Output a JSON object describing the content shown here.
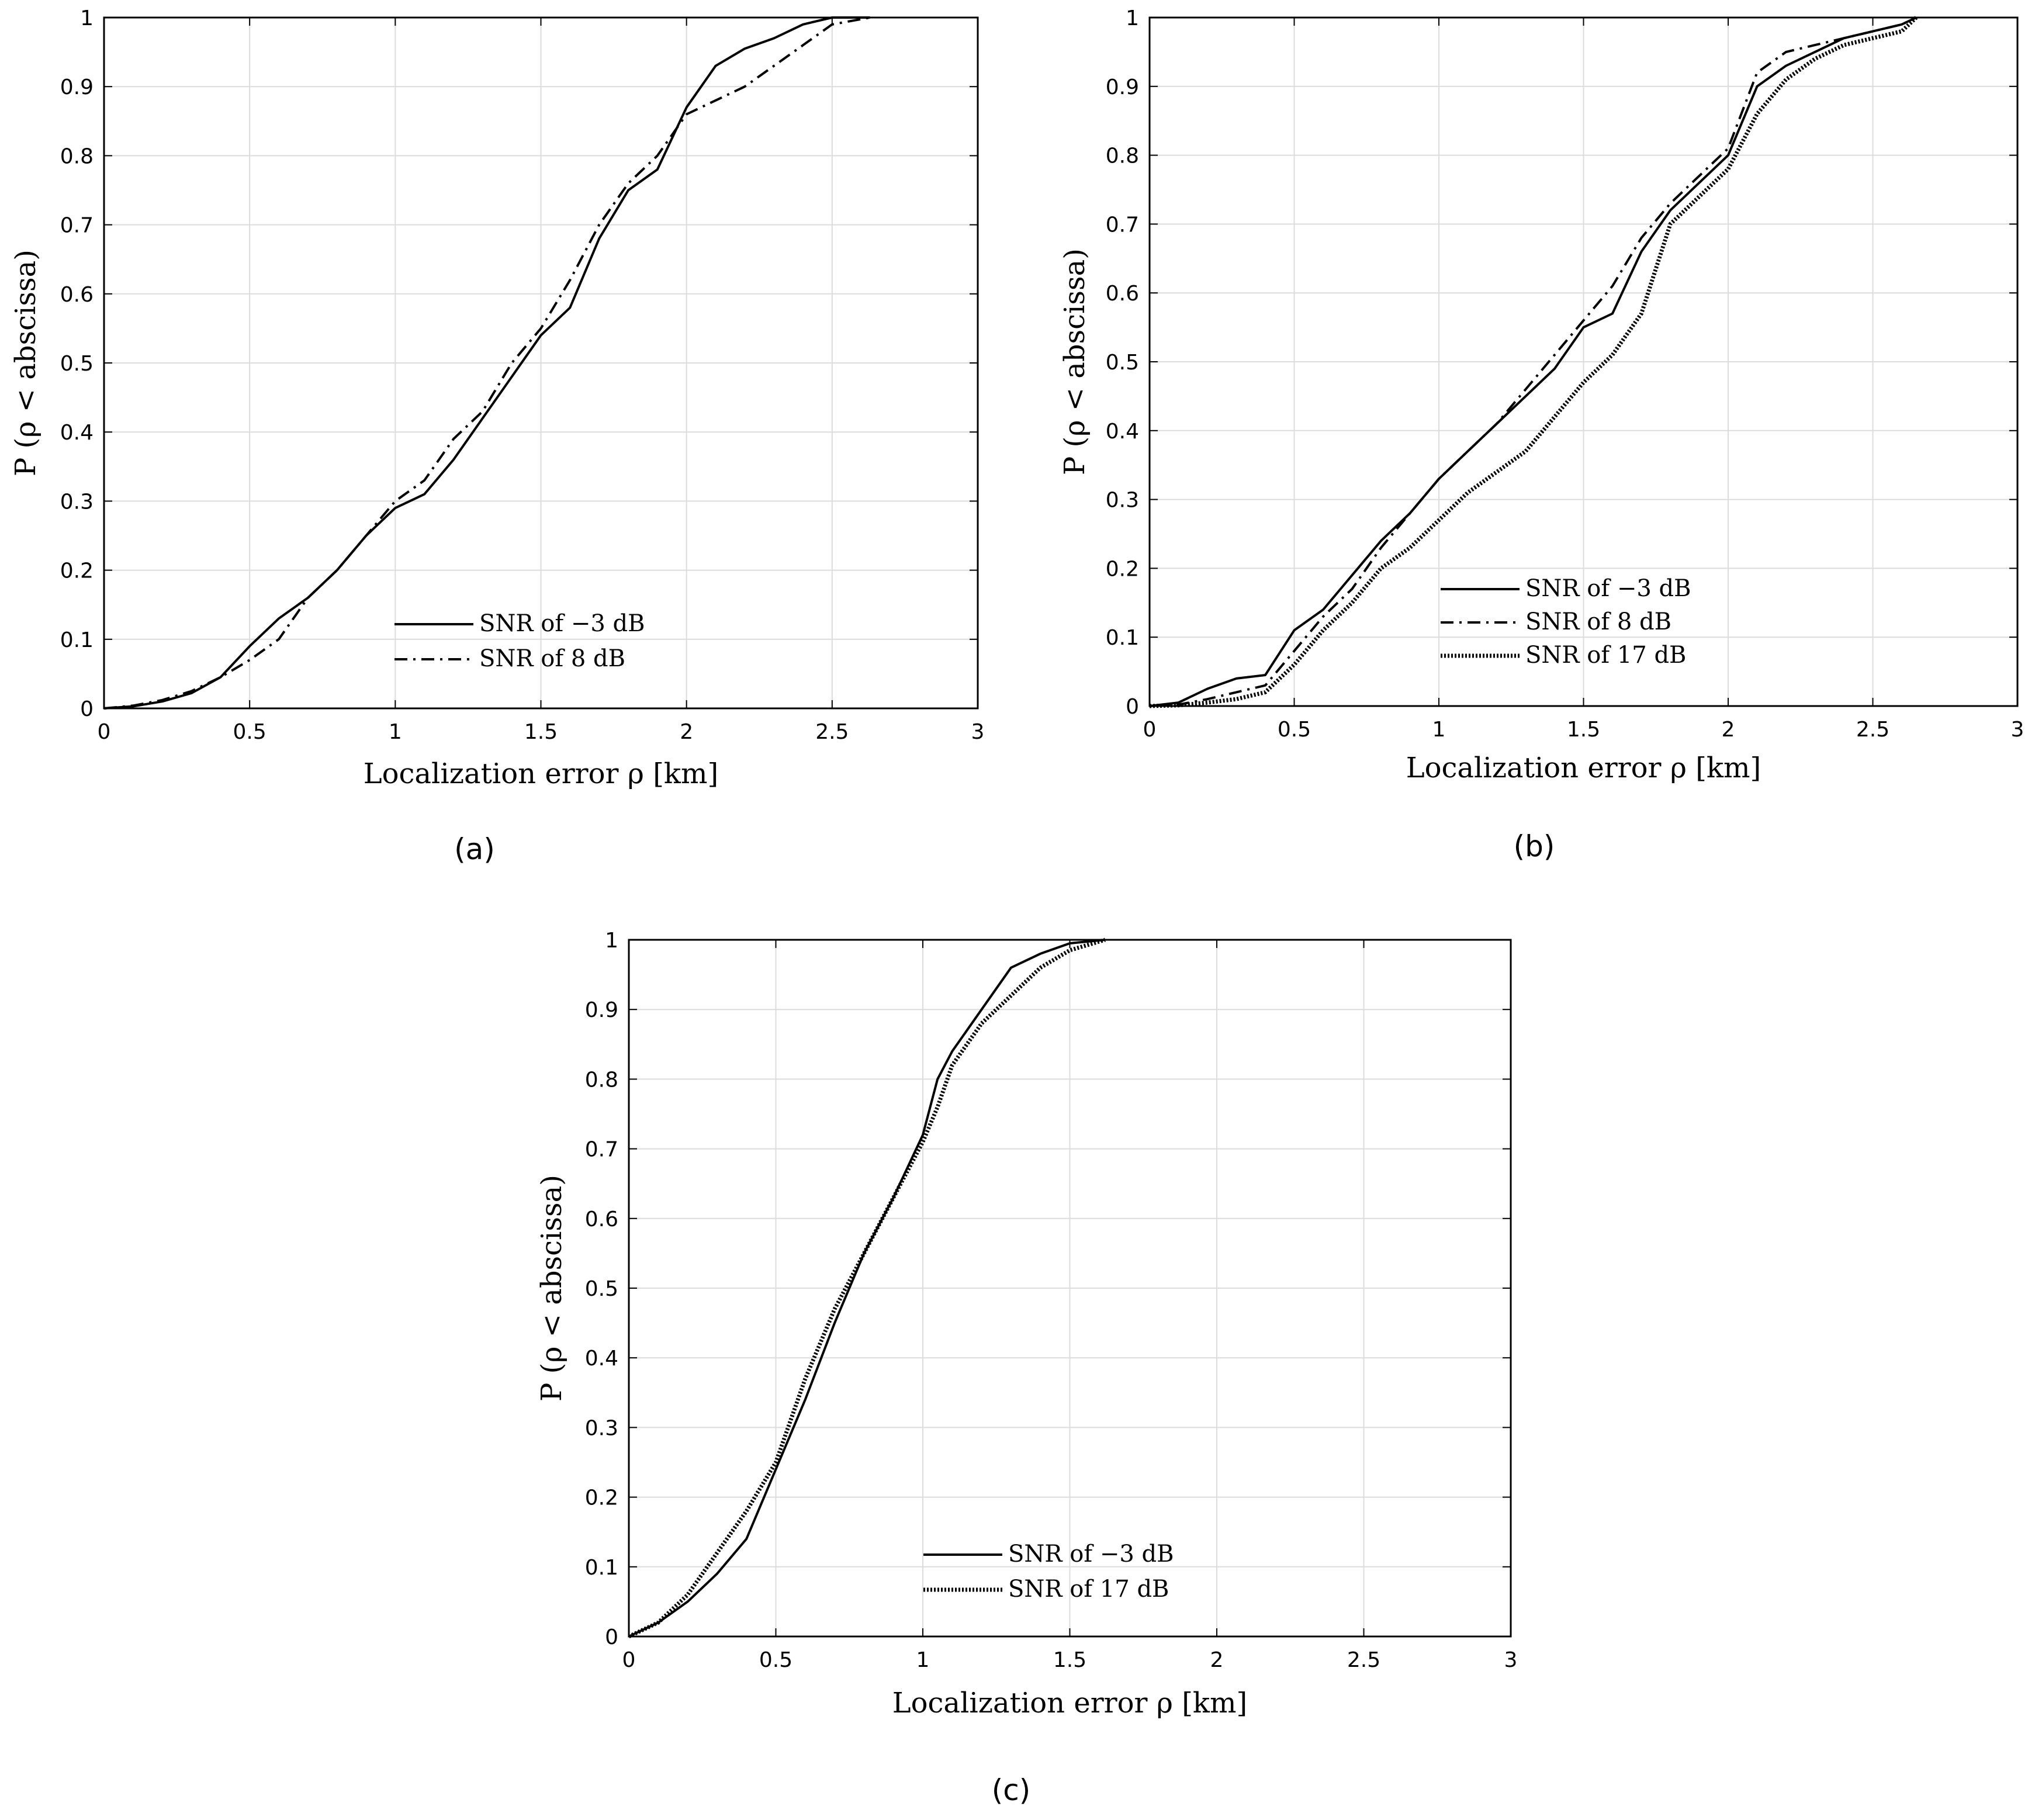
{
  "chart_data": [
    {
      "id": "a",
      "type": "line",
      "caption": "(a)",
      "xlabel": "Localization error ρ [km]",
      "ylabel": "P (ρ < abscissa)",
      "xlim": [
        0,
        3
      ],
      "ylim": [
        0,
        1
      ],
      "xticks": [
        "0",
        "0.5",
        "1",
        "1.5",
        "2",
        "2.5",
        "3"
      ],
      "yticks": [
        "0",
        "0.1",
        "0.2",
        "0.3",
        "0.4",
        "0.5",
        "0.6",
        "0.7",
        "0.8",
        "0.9",
        "1"
      ],
      "grid": true,
      "legend_position": "bottom-center",
      "series": [
        {
          "name": "SNR of −3 dB",
          "style": "solid",
          "x": [
            0,
            0.1,
            0.2,
            0.3,
            0.4,
            0.5,
            0.6,
            0.7,
            0.8,
            0.9,
            1.0,
            1.1,
            1.2,
            1.3,
            1.4,
            1.5,
            1.6,
            1.7,
            1.8,
            1.9,
            2.0,
            2.1,
            2.2,
            2.3,
            2.4,
            2.5,
            2.63
          ],
          "y": [
            0,
            0.003,
            0.01,
            0.022,
            0.045,
            0.09,
            0.13,
            0.16,
            0.2,
            0.25,
            0.29,
            0.31,
            0.36,
            0.42,
            0.48,
            0.54,
            0.58,
            0.68,
            0.75,
            0.78,
            0.87,
            0.93,
            0.955,
            0.97,
            0.99,
            1.0,
            1.0
          ]
        },
        {
          "name": "SNR of 8 dB",
          "style": "dashdot",
          "x": [
            0,
            0.1,
            0.2,
            0.3,
            0.4,
            0.5,
            0.6,
            0.7,
            0.8,
            0.9,
            1.0,
            1.1,
            1.2,
            1.3,
            1.4,
            1.5,
            1.6,
            1.7,
            1.8,
            1.9,
            2.0,
            2.1,
            2.2,
            2.3,
            2.4,
            2.5,
            2.63
          ],
          "y": [
            0,
            0.004,
            0.012,
            0.025,
            0.045,
            0.07,
            0.1,
            0.16,
            0.2,
            0.25,
            0.3,
            0.33,
            0.39,
            0.43,
            0.5,
            0.55,
            0.62,
            0.7,
            0.76,
            0.8,
            0.86,
            0.88,
            0.9,
            0.93,
            0.96,
            0.99,
            1.0
          ]
        }
      ]
    },
    {
      "id": "b",
      "type": "line",
      "caption": "(b)",
      "xlabel": "Localization error ρ [km]",
      "ylabel": "P (ρ < abscissa)",
      "xlim": [
        0,
        3
      ],
      "ylim": [
        0,
        1
      ],
      "xticks": [
        "0",
        "0.5",
        "1",
        "1.5",
        "2",
        "2.5",
        "3"
      ],
      "yticks": [
        "0",
        "0.1",
        "0.2",
        "0.3",
        "0.4",
        "0.5",
        "0.6",
        "0.7",
        "0.8",
        "0.9",
        "1"
      ],
      "grid": true,
      "legend_position": "bottom-right",
      "series": [
        {
          "name": "SNR of −3 dB",
          "style": "solid",
          "x": [
            0,
            0.1,
            0.2,
            0.3,
            0.4,
            0.5,
            0.6,
            0.7,
            0.8,
            0.9,
            1.0,
            1.1,
            1.2,
            1.3,
            1.4,
            1.5,
            1.6,
            1.7,
            1.8,
            1.9,
            2.0,
            2.1,
            2.2,
            2.3,
            2.4,
            2.5,
            2.6,
            2.65
          ],
          "y": [
            0,
            0.005,
            0.025,
            0.04,
            0.045,
            0.11,
            0.14,
            0.19,
            0.24,
            0.28,
            0.33,
            0.37,
            0.41,
            0.45,
            0.49,
            0.55,
            0.57,
            0.66,
            0.72,
            0.76,
            0.8,
            0.9,
            0.93,
            0.95,
            0.97,
            0.98,
            0.99,
            1.0
          ]
        },
        {
          "name": "SNR of 8 dB",
          "style": "dashdot",
          "x": [
            0,
            0.1,
            0.2,
            0.3,
            0.4,
            0.5,
            0.6,
            0.7,
            0.8,
            0.9,
            1.0,
            1.1,
            1.2,
            1.3,
            1.4,
            1.5,
            1.6,
            1.7,
            1.8,
            1.9,
            2.0,
            2.1,
            2.2,
            2.3,
            2.4,
            2.5,
            2.6,
            2.65
          ],
          "y": [
            0,
            0.002,
            0.01,
            0.02,
            0.03,
            0.08,
            0.13,
            0.17,
            0.23,
            0.28,
            0.33,
            0.37,
            0.41,
            0.46,
            0.51,
            0.56,
            0.61,
            0.68,
            0.73,
            0.77,
            0.81,
            0.92,
            0.95,
            0.96,
            0.97,
            0.98,
            0.99,
            1.0
          ]
        },
        {
          "name": "SNR of 17 dB",
          "style": "dotted",
          "x": [
            0,
            0.1,
            0.2,
            0.3,
            0.4,
            0.5,
            0.6,
            0.7,
            0.8,
            0.9,
            1.0,
            1.1,
            1.2,
            1.3,
            1.4,
            1.5,
            1.6,
            1.7,
            1.8,
            1.9,
            2.0,
            2.1,
            2.2,
            2.3,
            2.4,
            2.5,
            2.6,
            2.65
          ],
          "y": [
            0,
            0.001,
            0.005,
            0.01,
            0.02,
            0.06,
            0.11,
            0.15,
            0.2,
            0.23,
            0.27,
            0.31,
            0.34,
            0.37,
            0.42,
            0.47,
            0.51,
            0.57,
            0.7,
            0.74,
            0.78,
            0.86,
            0.91,
            0.94,
            0.96,
            0.97,
            0.98,
            1.0
          ]
        }
      ]
    },
    {
      "id": "c",
      "type": "line",
      "caption": "(c)",
      "xlabel": "Localization error ρ [km]",
      "ylabel": "P (ρ < abscissa)",
      "xlim": [
        0,
        3
      ],
      "ylim": [
        0,
        1
      ],
      "xticks": [
        "0",
        "0.5",
        "1",
        "1.5",
        "2",
        "2.5",
        "3"
      ],
      "yticks": [
        "0",
        "0.1",
        "0.2",
        "0.3",
        "0.4",
        "0.5",
        "0.6",
        "0.7",
        "0.8",
        "0.9",
        "1"
      ],
      "grid": true,
      "legend_position": "bottom-center",
      "series": [
        {
          "name": "SNR of −3 dB",
          "style": "solid",
          "x": [
            0,
            0.1,
            0.2,
            0.3,
            0.4,
            0.5,
            0.6,
            0.7,
            0.8,
            0.9,
            1.0,
            1.05,
            1.1,
            1.2,
            1.3,
            1.4,
            1.5,
            1.62
          ],
          "y": [
            0,
            0.02,
            0.05,
            0.09,
            0.14,
            0.24,
            0.34,
            0.45,
            0.55,
            0.63,
            0.72,
            0.8,
            0.84,
            0.9,
            0.96,
            0.98,
            0.995,
            1.0
          ]
        },
        {
          "name": "SNR of 17 dB",
          "style": "dotted",
          "x": [
            0,
            0.1,
            0.2,
            0.3,
            0.4,
            0.5,
            0.6,
            0.7,
            0.8,
            0.9,
            1.0,
            1.05,
            1.1,
            1.2,
            1.3,
            1.4,
            1.5,
            1.62
          ],
          "y": [
            0,
            0.02,
            0.06,
            0.12,
            0.18,
            0.25,
            0.37,
            0.47,
            0.55,
            0.63,
            0.71,
            0.76,
            0.82,
            0.88,
            0.92,
            0.96,
            0.985,
            1.0
          ]
        }
      ]
    }
  ]
}
